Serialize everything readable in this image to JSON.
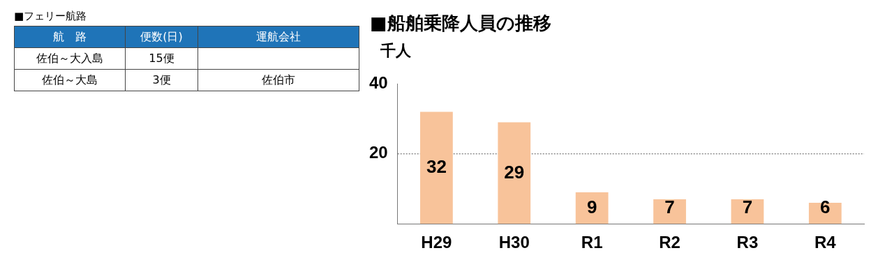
{
  "chart_data": [
    {
      "type": "other",
      "title": "■フェリー航路",
      "categories": [
        "航　路",
        "便数(日)",
        "運航会社"
      ],
      "annotations": [
        "佐伯～大入島",
        "15便",
        null,
        "佐伯～大島",
        "3便",
        "佐伯市"
      ]
    },
    {
      "type": "bar",
      "title": "■船舶乗降人員の推移",
      "ylabel": "千人",
      "categories": [
        "H29",
        "H30",
        "R1",
        "R2",
        "R3",
        "R4"
      ],
      "values": [
        32,
        29,
        9,
        7,
        7,
        6
      ],
      "color": "#f8c39a",
      "data_labels": true,
      "ylim": [
        0,
        40
      ],
      "yticks": [
        20,
        40
      ],
      "ref_lines": [
        {
          "axis": "y",
          "value": 20,
          "line_style": "dotted",
          "color": "#555555"
        }
      ]
    }
  ]
}
